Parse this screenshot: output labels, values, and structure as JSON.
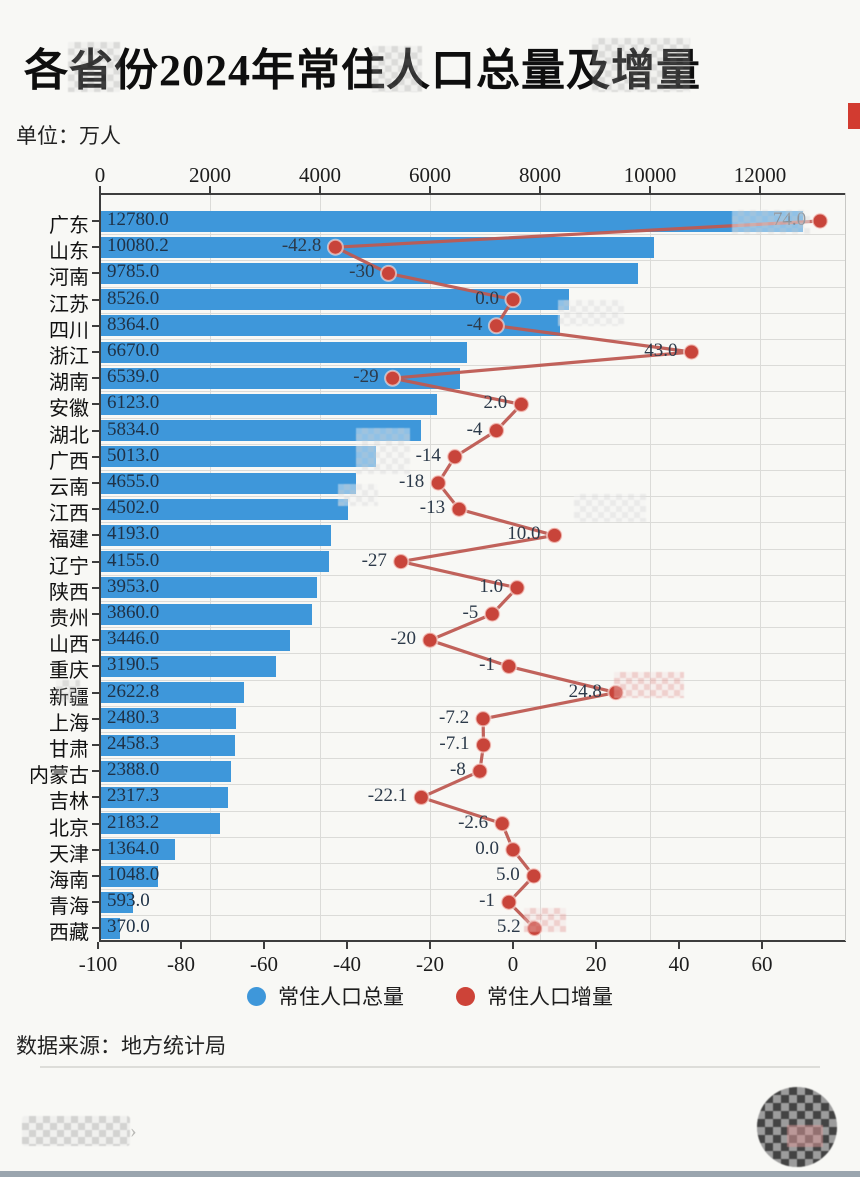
{
  "title": "各省份2024年常住人口总量及增量",
  "unit_label": "单位：万人",
  "source": "数据来源：地方统计局",
  "legend": {
    "total": {
      "label": "常住人口总量",
      "color": "#3e97da"
    },
    "increment": {
      "label": "常住人口增量",
      "color": "#cd4338"
    }
  },
  "colors": {
    "bar": "#3e97da",
    "line": "#be5a52",
    "marker": "#c8443a",
    "grid": "#dbdbd8",
    "axis": "#3d3d3d",
    "bar_label_text": "#1f3247",
    "background": "#f8f8f5",
    "edge_mark": "#d23b30"
  },
  "chart_data": {
    "type": "bar",
    "orientation": "horizontal",
    "title": "各省份2024年常住人口总量及增量",
    "unit": "万人",
    "grid": true,
    "legend_position": "bottom",
    "categories": [
      "广东",
      "山东",
      "河南",
      "江苏",
      "四川",
      "浙江",
      "湖南",
      "安徽",
      "湖北",
      "广西",
      "云南",
      "江西",
      "福建",
      "辽宁",
      "陕西",
      "贵州",
      "山西",
      "重庆",
      "新疆",
      "上海",
      "甘肃",
      "内蒙古",
      "吉林",
      "北京",
      "天津",
      "海南",
      "青海",
      "西藏"
    ],
    "series": [
      {
        "name": "常住人口总量",
        "type": "bar",
        "color": "#3e97da",
        "values": [
          12780.0,
          10080.2,
          9785.0,
          8526.0,
          8364.0,
          6670.0,
          6539.0,
          6123.0,
          5834.0,
          5013.0,
          4655.0,
          4502.0,
          4193.0,
          4155.0,
          3953.0,
          3860.0,
          3446.0,
          3190.5,
          2622.8,
          2480.3,
          2458.3,
          2388.0,
          2317.3,
          2183.2,
          1364.0,
          1048.0,
          593.0,
          370.0
        ],
        "labels": [
          "12780.0",
          "10080.2",
          "9785.0",
          "8526.0",
          "8364.0",
          "6670.0",
          "6539.0",
          "6123.0",
          "5834.0",
          "5013.0",
          "4655.0",
          "4502.0",
          "4193.0",
          "4155.0",
          "3953.0",
          "3860.0",
          "3446.0",
          "3190.5",
          "2622.8",
          "2480.3",
          "2458.3",
          "2388.0",
          "2317.3",
          "2183.2",
          "1364.0",
          "1048.0",
          "593.0",
          "370.0"
        ]
      },
      {
        "name": "常住人口增量",
        "type": "line",
        "color": "#be5a52",
        "marker_color": "#c8443a",
        "values": [
          74.0,
          -42.8,
          -30,
          0.0,
          -4,
          43.0,
          -29,
          2.0,
          -4,
          -14,
          -18,
          -13,
          10.0,
          -27,
          1.0,
          -5,
          -20,
          -1,
          24.8,
          -7.2,
          -7.1,
          -8,
          -22.1,
          -2.6,
          0.0,
          5.0,
          -1,
          5.2
        ],
        "labels": [
          "74.0",
          "-42.8",
          "-30",
          "0.0",
          "-4",
          "43.0",
          "-29",
          "2.0",
          "-4",
          "-14",
          "-18",
          "-13",
          "10.0",
          "-27",
          "1.0",
          "-5",
          "-20",
          "-1",
          "24.8",
          "-7.2",
          "-7.1",
          "-8",
          "-22.1",
          "-2.6",
          "0.0",
          "5.0",
          "-1",
          "5.2"
        ]
      }
    ],
    "top_axis": {
      "ticks": [
        0,
        2000,
        4000,
        6000,
        8000,
        10000,
        12000
      ],
      "range": [
        0,
        13545
      ]
    },
    "bottom_axis": {
      "ticks": [
        -100,
        -80,
        -60,
        -40,
        -20,
        0,
        20,
        40,
        60
      ],
      "range": [
        -100,
        80
      ]
    }
  }
}
